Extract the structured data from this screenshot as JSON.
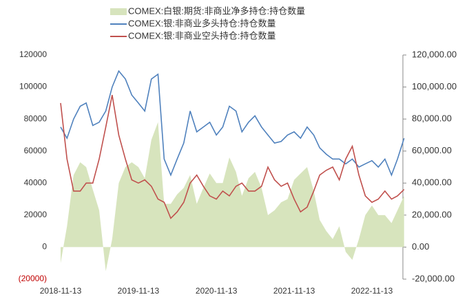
{
  "chart_data": {
    "type": "line",
    "x": [
      "2018-11-13",
      "2018-12-13",
      "2019-01-13",
      "2019-02-13",
      "2019-03-13",
      "2019-04-13",
      "2019-05-13",
      "2019-06-13",
      "2019-07-13",
      "2019-08-13",
      "2019-09-13",
      "2019-10-13",
      "2019-11-13",
      "2019-12-13",
      "2020-01-13",
      "2020-02-13",
      "2020-03-13",
      "2020-04-13",
      "2020-05-13",
      "2020-06-13",
      "2020-07-13",
      "2020-08-13",
      "2020-09-13",
      "2020-10-13",
      "2020-11-13",
      "2020-12-13",
      "2021-01-13",
      "2021-02-13",
      "2021-03-13",
      "2021-04-13",
      "2021-05-13",
      "2021-06-13",
      "2021-07-13",
      "2021-08-13",
      "2021-09-13",
      "2021-10-13",
      "2021-11-13",
      "2021-12-13",
      "2022-01-13",
      "2022-02-13",
      "2022-03-13",
      "2022-04-13",
      "2022-05-13",
      "2022-06-13",
      "2022-07-13",
      "2022-08-13",
      "2022-09-13",
      "2022-10-13",
      "2022-11-13",
      "2022-12-13",
      "2023-01-13",
      "2023-02-13",
      "2023-03-13",
      "2023-04-13"
    ],
    "series": [
      {
        "name": "COMEX:白银:期货:非商业净多持仓:持仓数量",
        "color": "#d7e4bd",
        "style": "area",
        "axis": "y2",
        "values": [
          -10000,
          13000,
          45000,
          53000,
          50000,
          36000,
          23000,
          -15000,
          5000,
          40000,
          50000,
          53000,
          50000,
          43000,
          67000,
          78000,
          27000,
          27000,
          33000,
          37000,
          45000,
          27000,
          37000,
          46000,
          40000,
          40000,
          56000,
          47000,
          32000,
          43000,
          47000,
          37000,
          20000,
          23000,
          28000,
          30000,
          42000,
          46000,
          50000,
          35000,
          17000,
          10000,
          5000,
          13000,
          -3000,
          -8000,
          5000,
          20000,
          26000,
          20000,
          20000,
          15000,
          23000,
          32000
        ]
      },
      {
        "name": "COMEX:银:非商业多头持仓:持仓数量",
        "color": "#4f81bd",
        "style": "line",
        "values": [
          75000,
          68000,
          80000,
          88000,
          90000,
          76000,
          78000,
          85000,
          100000,
          110000,
          105000,
          95000,
          90000,
          85000,
          105000,
          108000,
          55000,
          45000,
          55000,
          65000,
          85000,
          72000,
          75000,
          78000,
          70000,
          75000,
          88000,
          85000,
          72000,
          78000,
          82000,
          75000,
          70000,
          65000,
          66000,
          70000,
          72000,
          68000,
          75000,
          70000,
          62000,
          58000,
          55000,
          55000,
          52000,
          55000,
          50000,
          52000,
          54000,
          50000,
          55000,
          45000,
          55000,
          68000
        ]
      },
      {
        "name": "COMEX:银:非商业空头持仓:持仓数量",
        "color": "#c0504d",
        "style": "line",
        "values": [
          90000,
          55000,
          35000,
          35000,
          40000,
          40000,
          55000,
          75000,
          95000,
          70000,
          55000,
          42000,
          40000,
          42000,
          38000,
          30000,
          28000,
          18000,
          22000,
          28000,
          40000,
          45000,
          38000,
          32000,
          30000,
          35000,
          32000,
          38000,
          40000,
          35000,
          35000,
          38000,
          50000,
          42000,
          38000,
          40000,
          30000,
          22000,
          25000,
          35000,
          45000,
          48000,
          50000,
          42000,
          55000,
          63000,
          45000,
          32000,
          28000,
          30000,
          35000,
          30000,
          32000,
          36000
        ]
      }
    ],
    "xticks": [
      "2018-11-13",
      "2019-11-13",
      "2020-11-13",
      "2021-11-13",
      "2022-11-13"
    ],
    "ylim": [
      -20000,
      120000
    ],
    "yticks": [
      120000,
      100000,
      80000,
      60000,
      40000,
      20000,
      0,
      {
        "value": -20000,
        "label": "(20000)"
      }
    ],
    "negative_label_color": "#c00000",
    "y2lim": [
      -20000,
      120000
    ],
    "y2ticks": [
      {
        "value": 120000,
        "label": "120,000.00"
      },
      {
        "value": 100000,
        "label": "100,000.00"
      },
      {
        "value": 80000,
        "label": "80,000.00"
      },
      {
        "value": 60000,
        "label": "60,000.00"
      },
      {
        "value": 40000,
        "label": "40,000.00"
      },
      {
        "value": 20000,
        "label": "20,000.00"
      },
      {
        "value": 0,
        "label": "0.00"
      },
      {
        "value": -20000,
        "label": "-20,000.00"
      }
    ]
  }
}
